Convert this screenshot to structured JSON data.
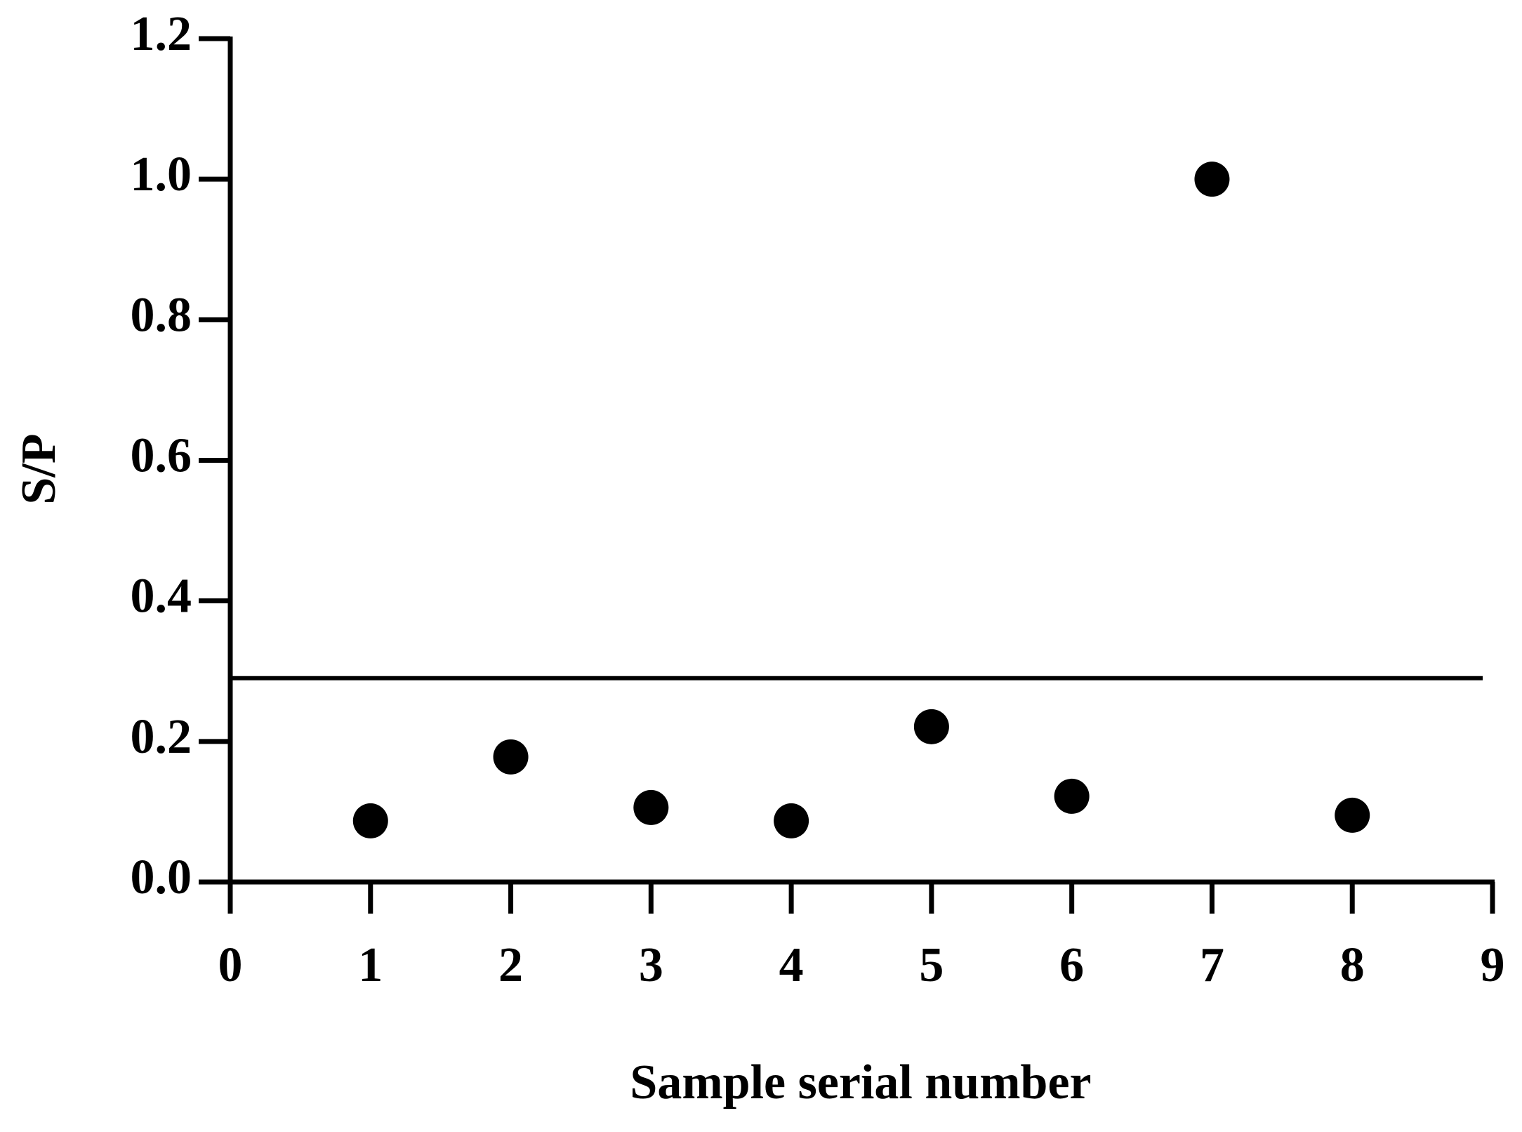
{
  "chart_data": {
    "type": "scatter",
    "x_label": "Sample serial number",
    "y_label": "S/P",
    "series": [
      {
        "color": "#000000",
        "x": [
          1,
          2,
          3,
          4,
          5,
          6,
          7,
          8
        ],
        "values": [
          0.087,
          0.178,
          0.106,
          0.087,
          0.221,
          0.122,
          1.0,
          0.095
        ]
      }
    ],
    "reference_line": 0.29,
    "xlim": [
      0,
      9
    ],
    "xticks": [
      0,
      1,
      2,
      3,
      4,
      5,
      6,
      7,
      8,
      9
    ],
    "ylim": [
      0,
      1.2
    ],
    "yticks": [
      {
        "value": 0,
        "label": "0.0"
      },
      0.2,
      0.4,
      0.6,
      0.8,
      {
        "value": 1,
        "label": "1.0"
      },
      1.2
    ],
    "grid": false
  }
}
